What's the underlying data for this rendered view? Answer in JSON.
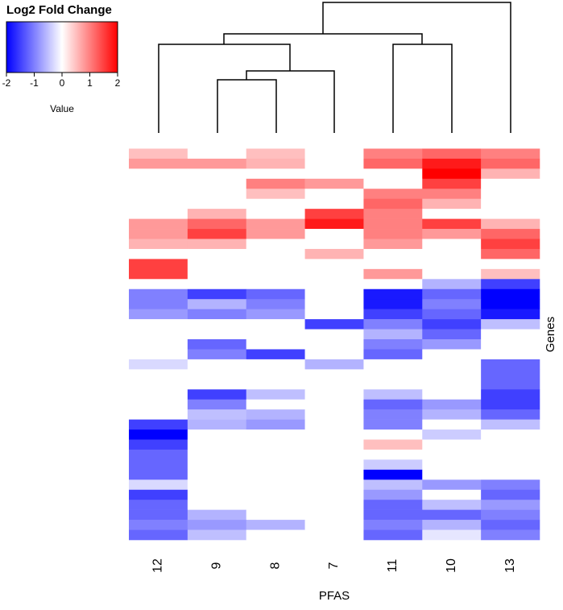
{
  "chart_data": {
    "type": "heatmap",
    "key_title": "Log2 Fold Change",
    "key_label": "Value",
    "xlabel": "PFAS",
    "ylabel": "Genes",
    "categories": [
      "12",
      "9",
      "8",
      "7",
      "11",
      "10",
      "13"
    ],
    "zlim": [
      -2,
      2
    ],
    "zticks": [
      -2,
      -1,
      0,
      1,
      2
    ],
    "colors": [
      "#0000ff",
      "#ffffff",
      "#ff0000"
    ],
    "values": [
      [
        0,
        0,
        0,
        0,
        0,
        0,
        0
      ],
      [
        0.5,
        0,
        0.5,
        0,
        1,
        1.2,
        1
      ],
      [
        0.8,
        0.8,
        0.6,
        0,
        1.2,
        1.8,
        1.2
      ],
      [
        0,
        0,
        0,
        0,
        0,
        2,
        0.6
      ],
      [
        0,
        0,
        1,
        0.8,
        0,
        1.5,
        0
      ],
      [
        0,
        0,
        0.5,
        0,
        1,
        1,
        0
      ],
      [
        0,
        0,
        0,
        0,
        1.2,
        0.6,
        0
      ],
      [
        0,
        0.6,
        0,
        1.5,
        1,
        0,
        0
      ],
      [
        0.8,
        1.2,
        0.8,
        1.8,
        1,
        1.5,
        0.6
      ],
      [
        0.8,
        1.5,
        0.8,
        0,
        1,
        0.8,
        1.2
      ],
      [
        0.6,
        0.6,
        0,
        0,
        0.8,
        0,
        1.5
      ],
      [
        0,
        0,
        0,
        0.6,
        0,
        0,
        1.2
      ],
      [
        1.5,
        0,
        0,
        0,
        0,
        0,
        0
      ],
      [
        1.5,
        0,
        0,
        0,
        0.8,
        0,
        0.5
      ],
      [
        0,
        0,
        0,
        0,
        0,
        -0.6,
        -1.5
      ],
      [
        -1,
        -1.5,
        -1.2,
        0,
        -1.8,
        -1.2,
        -2
      ],
      [
        -1,
        -0.6,
        -1,
        0,
        -1.8,
        -1,
        -2
      ],
      [
        -0.8,
        -1,
        -0.8,
        0,
        -1.5,
        -1.2,
        -1.8
      ],
      [
        0,
        0,
        0,
        -1.5,
        -1,
        -1.5,
        -0.5
      ],
      [
        0,
        0,
        0,
        0,
        -0.6,
        -1.2,
        0
      ],
      [
        0,
        -1.2,
        0,
        0,
        -1,
        -0.8,
        0
      ],
      [
        0,
        -1,
        -1.5,
        0,
        -1.2,
        0,
        0
      ],
      [
        -0.3,
        0,
        0,
        -0.6,
        0,
        0,
        -1.2
      ],
      [
        0,
        0,
        0,
        0,
        0,
        0,
        -1.2
      ],
      [
        0,
        0,
        0,
        0,
        0,
        0,
        -1.2
      ],
      [
        0,
        -1.5,
        -0.5,
        0,
        -0.5,
        0,
        -1.5
      ],
      [
        0,
        -1,
        0,
        0,
        -1.2,
        -0.8,
        -1.5
      ],
      [
        0,
        -0.5,
        -0.6,
        0,
        -1,
        -0.6,
        -1.2
      ],
      [
        -1.5,
        -0.6,
        -0.8,
        0,
        -1,
        0,
        -0.5
      ],
      [
        -2,
        0,
        0,
        0,
        0,
        -0.4,
        0
      ],
      [
        -1.5,
        0,
        0,
        0,
        0.5,
        0,
        0
      ],
      [
        -1.2,
        0,
        0,
        0,
        0,
        0,
        0
      ],
      [
        -1.2,
        0,
        0,
        0,
        -0.4,
        0,
        0
      ],
      [
        -1.2,
        0,
        0,
        0,
        -2,
        0,
        0
      ],
      [
        -0.3,
        0,
        0,
        0,
        -0.5,
        -0.8,
        -1
      ],
      [
        -1.5,
        0,
        0,
        0,
        -0.8,
        0,
        -1.2
      ],
      [
        -1.2,
        0,
        0,
        0,
        -1.2,
        -0.5,
        -0.8
      ],
      [
        -1.2,
        -0.6,
        0,
        0,
        -1.2,
        -1.2,
        -1
      ],
      [
        -1,
        -0.8,
        -0.6,
        0,
        -1,
        -0.6,
        -1.2
      ],
      [
        -1.2,
        -0.5,
        0,
        0,
        -1.2,
        -0.2,
        -1
      ]
    ]
  }
}
